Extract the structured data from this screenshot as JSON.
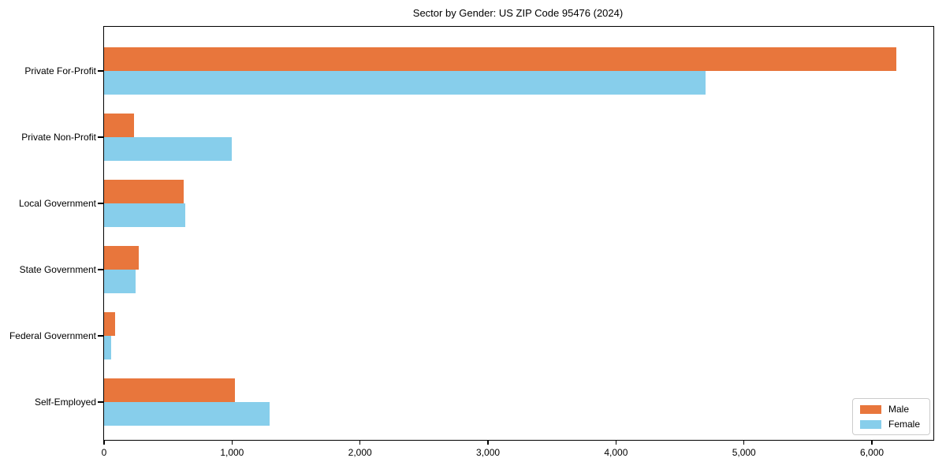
{
  "chart_data": {
    "type": "bar",
    "orientation": "horizontal",
    "title": "Sector by Gender: US ZIP Code 95476 (2024)",
    "categories": [
      "Private For-Profit",
      "Private Non-Profit",
      "Local Government",
      "State Government",
      "Federal Government",
      "Self-Employed"
    ],
    "series": [
      {
        "name": "Male",
        "color": "#E8763C",
        "values": [
          6190,
          232,
          620,
          271,
          86,
          1023
        ]
      },
      {
        "name": "Female",
        "color": "#87CEEB",
        "values": [
          4700,
          998,
          635,
          245,
          55,
          1292
        ]
      }
    ],
    "xlabel": "",
    "ylabel": "",
    "xlim": [
      0,
      6480
    ],
    "xticks": [
      0,
      1000,
      2000,
      3000,
      4000,
      5000,
      6000
    ],
    "xtick_labels": [
      "0",
      "1,000",
      "2,000",
      "3,000",
      "4,000",
      "5,000",
      "6,000"
    ],
    "legend_position": "lower right",
    "grid": false,
    "axis_color": "#000000",
    "background_color": "#ffffff"
  }
}
